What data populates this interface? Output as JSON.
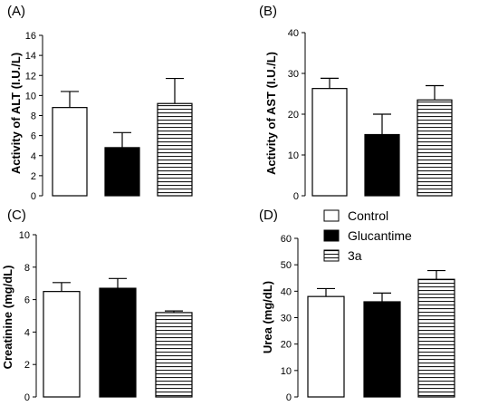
{
  "chart_data": [
    {
      "panel": "(A)",
      "type": "bar",
      "categories": [
        "Control",
        "Glucantime",
        "3a"
      ],
      "values": [
        8.8,
        4.8,
        9.2
      ],
      "errors": [
        1.6,
        1.5,
        2.5
      ],
      "ylabel": "Activity of ALT (I.U./L)",
      "ylim": [
        0,
        16
      ],
      "yticks": [
        0,
        2,
        4,
        6,
        8,
        10,
        12,
        14,
        16
      ]
    },
    {
      "panel": "(B)",
      "type": "bar",
      "categories": [
        "Control",
        "Glucantime",
        "3a"
      ],
      "values": [
        26.3,
        15.0,
        23.5
      ],
      "errors": [
        2.5,
        5.0,
        3.5
      ],
      "ylabel": "Activity of AST (I.U./L)",
      "ylim": [
        0,
        40
      ],
      "yticks": [
        0,
        10,
        20,
        30,
        40
      ]
    },
    {
      "panel": "(C)",
      "type": "bar",
      "categories": [
        "Control",
        "Glucantime",
        "3a"
      ],
      "values": [
        6.5,
        6.7,
        5.2
      ],
      "errors": [
        0.55,
        0.6,
        0.1
      ],
      "ylabel": "Creatinine (mg/dL)",
      "ylim": [
        0,
        10
      ],
      "yticks": [
        0,
        2,
        4,
        6,
        8,
        10
      ]
    },
    {
      "panel": "(D)",
      "type": "bar",
      "categories": [
        "Control",
        "Glucantime",
        "3a"
      ],
      "values": [
        38.0,
        36.0,
        44.5
      ],
      "errors": [
        3.0,
        3.3,
        3.3
      ],
      "ylabel": "Urea (mg/dL)",
      "ylim": [
        0,
        60
      ],
      "yticks": [
        0,
        10,
        20,
        30,
        40,
        50,
        60
      ]
    }
  ],
  "legend": [
    {
      "label": "Control",
      "fill": "white"
    },
    {
      "label": "Glucantime",
      "fill": "black"
    },
    {
      "label": "3a",
      "fill": "horizontal-stripes"
    }
  ]
}
